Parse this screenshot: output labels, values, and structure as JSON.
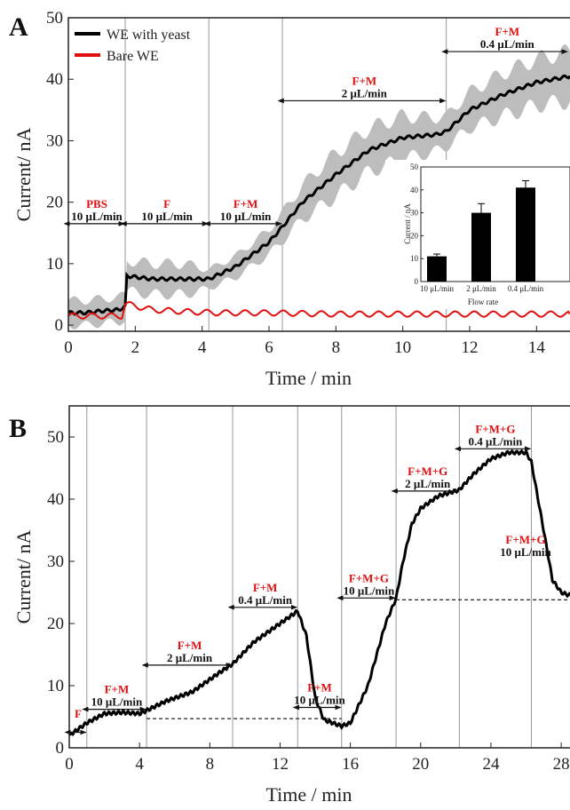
{
  "chart_data": [
    {
      "panel_label": "A",
      "type": "line",
      "xlabel": "Time / min",
      "ylabel": "Current/ nA",
      "xlim": [
        0,
        15
      ],
      "ylim": [
        -1,
        50
      ],
      "xticks": [
        0,
        2,
        4,
        6,
        8,
        10,
        12,
        14
      ],
      "yticks": [
        0,
        10,
        20,
        30,
        40,
        50
      ],
      "grid": false,
      "legend_position": "top-left",
      "series": [
        {
          "name": "WE with yeast",
          "color": "#000000",
          "x": [
            0,
            0.5,
            1.0,
            1.5,
            1.7,
            1.75,
            2.5,
            3.5,
            4.2,
            5.0,
            5.5,
            6.0,
            6.4,
            7.0,
            8.0,
            9.0,
            10.0,
            11.0,
            11.3,
            12.0,
            13.0,
            14.0,
            15.0
          ],
          "y": [
            2,
            2,
            2.3,
            2.5,
            3,
            8,
            7.5,
            7.5,
            7.5,
            9.5,
            11.5,
            13.5,
            16,
            20,
            24.5,
            28.5,
            30.5,
            31,
            31.5,
            35,
            37.5,
            39.5,
            40.5
          ]
        },
        {
          "name": "Bare WE",
          "color": "#e01010",
          "x": [
            0,
            1.6,
            1.7,
            2.5,
            3.5,
            4.5,
            6.0,
            8.0,
            10.0,
            12.0,
            15.0
          ],
          "y": [
            1.5,
            1.5,
            3.5,
            2.5,
            2.2,
            2.0,
            2.0,
            1.8,
            1.8,
            1.8,
            1.8
          ]
        }
      ],
      "band_halfwidth": {
        "name": "error range (gray)",
        "x": [
          0,
          1.7,
          1.75,
          3.5,
          4.2,
          6.0,
          8.0,
          10.0,
          11.3,
          13.0,
          15.0
        ],
        "y": [
          2,
          2,
          2.5,
          2.5,
          1.5,
          2.0,
          3.5,
          3.5,
          2.5,
          3.5,
          4.0
        ]
      },
      "annotations": [
        {
          "label": "PBS",
          "rate": "10 μL/min",
          "x_from": 0,
          "x_to": 1.7,
          "y": 16.5
        },
        {
          "label": "F",
          "rate": "10 μL/min",
          "x_from": 1.7,
          "x_to": 4.2,
          "y": 16.5
        },
        {
          "label": "F+M",
          "rate": "10 μL/min",
          "x_from": 4.2,
          "x_to": 6.4,
          "y": 16.5
        },
        {
          "label": "F+M",
          "rate": "2 μL/min",
          "x_from": 6.4,
          "x_to": 11.3,
          "y": 36.5
        },
        {
          "label": "F+M",
          "rate": "0.4 μL/min",
          "x_from": 11.3,
          "x_to": 15,
          "y": 44.5
        }
      ],
      "vlines": [
        1.7,
        4.2,
        6.4,
        11.3
      ],
      "inset": {
        "type": "bar",
        "ylabel": "Current / nA",
        "xlabel": "Flow rate",
        "categories": [
          "10 μL/min",
          "2 μL/min",
          "0.4 μL/min"
        ],
        "values": [
          11,
          30,
          41
        ],
        "errors": [
          1,
          4,
          3
        ],
        "ylim": [
          0,
          50
        ],
        "yticks": [
          0,
          10,
          20,
          30,
          40,
          50
        ]
      }
    },
    {
      "panel_label": "B",
      "type": "line",
      "xlabel": "Time / min",
      "ylabel": "Current/ nA",
      "xlim": [
        0,
        28.5
      ],
      "ylim": [
        0,
        55
      ],
      "xticks": [
        0,
        4,
        8,
        12,
        16,
        20,
        24,
        28
      ],
      "yticks": [
        0,
        10,
        20,
        30,
        40,
        50
      ],
      "grid": false,
      "series": [
        {
          "name": "",
          "color": "#000000",
          "x": [
            0,
            0.5,
            1.0,
            2.0,
            3.0,
            4.0,
            4.4,
            5.5,
            7.0,
            8.5,
            9.3,
            10.5,
            12.0,
            13.0,
            13.5,
            14.0,
            14.5,
            15.0,
            15.5,
            16.0,
            17.0,
            18.0,
            18.6,
            19.0,
            19.5,
            20.0,
            21.0,
            22.2,
            23.0,
            24.0,
            25.0,
            26.0,
            26.3,
            27.0,
            27.5,
            28.0,
            28.5
          ],
          "y": [
            2,
            3,
            4,
            5.5,
            5.7,
            5.5,
            6,
            7.5,
            9,
            12,
            13.5,
            17,
            20,
            22,
            18,
            8,
            4.5,
            4,
            3.5,
            4,
            10,
            20,
            24,
            30,
            36,
            38.5,
            40.5,
            41.5,
            44,
            46.5,
            47.5,
            47.5,
            46,
            35,
            27,
            25,
            24.5
          ]
        }
      ],
      "annotations": [
        {
          "label": "F",
          "rate": "",
          "x_from": 0,
          "x_to": 1.0,
          "y": 2.5
        },
        {
          "label": "F+M",
          "rate": "10 μL/min",
          "x_from": 1.0,
          "x_to": 4.4,
          "y": 6.2
        },
        {
          "label": "F+M",
          "rate": "2 μL/min",
          "x_from": 4.4,
          "x_to": 9.3,
          "y": 13.3
        },
        {
          "label": "F+M",
          "rate": "0.4 μL/min",
          "x_from": 9.3,
          "x_to": 13.0,
          "y": 22.6
        },
        {
          "label": "F+M",
          "rate": "10 μL/min",
          "x_from": 13.0,
          "x_to": 15.5,
          "y": 6.5
        },
        {
          "label": "F+M+G",
          "rate": "10 μL/min",
          "x_from": 15.5,
          "x_to": 18.6,
          "y": 24.1
        },
        {
          "label": "F+M+G",
          "rate": "2 μL/min",
          "x_from": 18.6,
          "x_to": 22.2,
          "y": 41.3
        },
        {
          "label": "F+M+G",
          "rate": "0.4 μL/min",
          "x_from": 22.2,
          "x_to": 26.3,
          "y": 48.1
        },
        {
          "label": "F+M+G",
          "rate": "10  μL/min",
          "x_from": 26.3,
          "x_to": 28.5,
          "y": 0
        }
      ],
      "vlines": [
        1.0,
        4.4,
        9.3,
        13.0,
        15.5,
        18.6,
        22.2,
        26.3
      ],
      "dashed_hlines": [
        {
          "y": 4.7,
          "x_from": 4.4,
          "x_to": 15.5
        },
        {
          "y": 23.8,
          "x_from": 18.6,
          "x_to": 28.5
        }
      ]
    }
  ]
}
